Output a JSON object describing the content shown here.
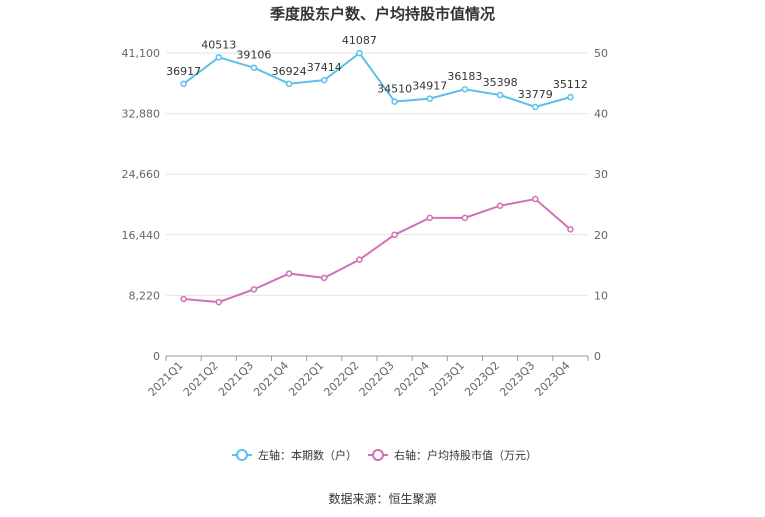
{
  "chart_data": {
    "type": "line",
    "title": "季度股东户数、户均持股市值情况",
    "categories": [
      "2021Q1",
      "2021Q2",
      "2021Q3",
      "2021Q4",
      "2022Q1",
      "2022Q2",
      "2022Q3",
      "2022Q4",
      "2023Q1",
      "2023Q2",
      "2023Q3",
      "2023Q4"
    ],
    "y_left": {
      "min": 0,
      "max": 41100,
      "ticks": [
        0,
        8220,
        16440,
        24660,
        32880,
        41100
      ],
      "tick_labels": [
        "0",
        "8,220",
        "16,440",
        "24,660",
        "32,880",
        "41,100"
      ]
    },
    "y_right": {
      "min": 0,
      "max": 50,
      "ticks": [
        0,
        10,
        20,
        30,
        40,
        50
      ],
      "tick_labels": [
        "0",
        "10",
        "20",
        "30",
        "40",
        "50"
      ]
    },
    "grid": true,
    "legend_position": "bottom",
    "series": [
      {
        "name": "左轴：本期数（户）",
        "axis": "left",
        "color": "#5bc0eb",
        "show_labels": true,
        "values": [
          36917,
          40513,
          39106,
          36924,
          37414,
          41087,
          34510,
          34917,
          36183,
          35398,
          33779,
          35112
        ]
      },
      {
        "name": "右轴：户均持股市值（万元）",
        "axis": "right",
        "color": "#d36fb8",
        "show_labels": false,
        "values": [
          9.4,
          8.9,
          11.0,
          13.6,
          12.9,
          15.9,
          20.0,
          22.8,
          22.8,
          24.8,
          25.9,
          20.9
        ]
      }
    ]
  },
  "source": "数据来源：恒生聚源"
}
